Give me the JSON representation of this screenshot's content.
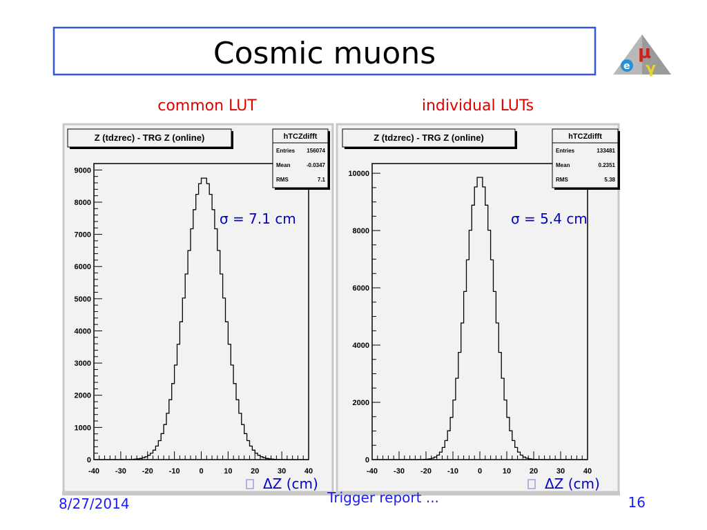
{
  "slide": {
    "title": "Cosmic muons",
    "left_label": "common LUT",
    "right_label": "individual  LUTs",
    "footer_date": "8/27/2014",
    "footer_center": "Trigger report ...",
    "page_number": "16",
    "logo_letters": "μ e γ",
    "colors": {
      "title_border": "#3355dd",
      "label": "#e00000",
      "annotation": "#0000cc",
      "footer": "#1a1aff",
      "pad_bg": "#f2f2f2"
    }
  },
  "chart_data": [
    {
      "type": "histogram",
      "title": "Z (tdzrec) - TRG Z (online)",
      "xlabel": "ΔZ (cm)",
      "xlim": [
        -40,
        40
      ],
      "ylim": [
        0,
        9200
      ],
      "x_ticks": [
        "-40",
        "-30",
        "-20",
        "-10",
        "0",
        "10",
        "20",
        "30",
        "40"
      ],
      "y_ticks": [
        "0",
        "1000",
        "2000",
        "3000",
        "4000",
        "5000",
        "6000",
        "7000",
        "8000",
        "9000"
      ],
      "bin_width": 1,
      "annotation": "σ =  7.1 cm",
      "stats": {
        "name": "hTCZdifft",
        "rows": [
          [
            "Entries",
            "156074"
          ],
          [
            "Mean",
            "-0.0347"
          ],
          [
            "RMS",
            "7.1"
          ]
        ]
      },
      "values": [
        0,
        0,
        0,
        0,
        0,
        0,
        0,
        0,
        0,
        0,
        1,
        2,
        3,
        5,
        8,
        14,
        23,
        37,
        58,
        90,
        136,
        202,
        294,
        420,
        590,
        809,
        1090,
        1438,
        1862,
        2363,
        2938,
        3583,
        4283,
        5020,
        5768,
        6497,
        7174,
        7767,
        8243,
        8576,
        8748,
        8748,
        8576,
        8243,
        7767,
        7174,
        6497,
        5768,
        5020,
        4283,
        3583,
        2938,
        2363,
        1862,
        1438,
        1090,
        809,
        590,
        420,
        294,
        202,
        136,
        90,
        58,
        37,
        23,
        14,
        8,
        5,
        3,
        2,
        1,
        0,
        0,
        0,
        0,
        0,
        0,
        0,
        0
      ]
    },
    {
      "type": "histogram",
      "title": "Z (tdzrec) - TRG Z (online)",
      "xlabel": "ΔZ (cm)",
      "xlim": [
        -40,
        40
      ],
      "ylim": [
        0,
        10340
      ],
      "x_ticks": [
        "-40",
        "-30",
        "-20",
        "-10",
        "0",
        "10",
        "20",
        "30",
        "40"
      ],
      "y_ticks": [
        "0",
        "2000",
        "4000",
        "6000",
        "8000",
        "10000"
      ],
      "bin_width": 1,
      "annotation": "σ =  5.4 cm",
      "stats": {
        "name": "hTCZdifft",
        "rows": [
          [
            "Entries",
            "133481"
          ],
          [
            "Mean",
            "0.2351"
          ],
          [
            "RMS",
            "5.38"
          ]
        ]
      },
      "values": [
        0,
        0,
        0,
        0,
        0,
        0,
        0,
        0,
        0,
        0,
        0,
        0,
        0,
        0,
        0,
        0,
        1,
        2,
        3,
        7,
        14,
        27,
        50,
        90,
        156,
        262,
        425,
        666,
        1008,
        1474,
        2083,
        2842,
        3746,
        4772,
        5871,
        6977,
        8012,
        8887,
        9523,
        9857,
        9857,
        9523,
        8887,
        8012,
        6977,
        5871,
        4772,
        3746,
        2842,
        2083,
        1474,
        1008,
        666,
        425,
        262,
        156,
        90,
        50,
        27,
        14,
        7,
        3,
        2,
        1,
        0,
        0,
        0,
        0,
        0,
        0,
        0,
        0,
        0,
        0,
        0,
        0,
        0,
        0,
        0,
        0
      ]
    }
  ]
}
